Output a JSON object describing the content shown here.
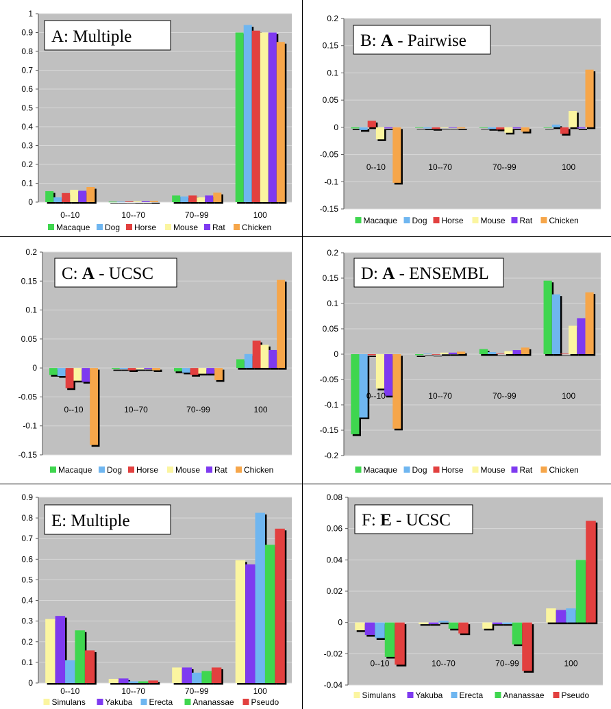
{
  "figure": {
    "category_labels": [
      "0--10",
      "10--70",
      "70--99",
      "100"
    ]
  },
  "colors": {
    "plot_bg": "#c0c0c0",
    "gridline": "#d8d8d8",
    "Macaque": "#3fd64f",
    "Dog": "#6fb6f0",
    "Horse": "#e2403f",
    "Mouse": "#fbf5a0",
    "Rat": "#7e3af0",
    "Chicken": "#f6a64a",
    "Simulans": "#fbf5a0",
    "Yakuba": "#7e3af0",
    "Erecta": "#6fb6f0",
    "Ananassae": "#3fd64f",
    "Pseudo": "#e2403f"
  },
  "chart_data": [
    {
      "id": "A",
      "type": "bar",
      "title": "A: Multiple",
      "title_bold": "",
      "title_rest": "",
      "categories": [
        "0--10",
        "10--70",
        "70--99",
        "100"
      ],
      "ylim": [
        0,
        1
      ],
      "yticks": [
        "0",
        "0.1",
        "0.2",
        "0.3",
        "0.4",
        "0.5",
        "0.6",
        "0.7",
        "0.8",
        "0.9",
        "1"
      ],
      "legend_position": "bottom",
      "series": [
        {
          "name": "Macaque",
          "values": [
            0.058,
            0.002,
            0.035,
            0.9
          ]
        },
        {
          "name": "Dog",
          "values": [
            0.025,
            0.002,
            0.03,
            0.94
          ]
        },
        {
          "name": "Horse",
          "values": [
            0.048,
            0.003,
            0.035,
            0.91
          ]
        },
        {
          "name": "Mouse",
          "values": [
            0.065,
            0.004,
            0.025,
            0.9
          ]
        },
        {
          "name": "Rat",
          "values": [
            0.06,
            0.004,
            0.035,
            0.9
          ]
        },
        {
          "name": "Chicken",
          "values": [
            0.08,
            0.006,
            0.05,
            0.85
          ]
        }
      ]
    },
    {
      "id": "B",
      "type": "bar",
      "title": "",
      "title_prefix": "B: ",
      "title_bold": "A",
      "title_rest": " - Pairwise",
      "categories": [
        "0--10",
        "10--70",
        "70--99",
        "100"
      ],
      "ylim": [
        -0.15,
        0.2
      ],
      "yticks": [
        "-0.15",
        "-0.1",
        "-0.05",
        "0",
        "0.05",
        "0.1",
        "0.15",
        "0.2"
      ],
      "legend_position": "bottom",
      "series": [
        {
          "name": "Macaque",
          "values": [
            -0.002,
            -0.001,
            -0.001,
            -0.001
          ]
        },
        {
          "name": "Dog",
          "values": [
            -0.005,
            -0.002,
            -0.003,
            0.005
          ]
        },
        {
          "name": "Horse",
          "values": [
            0.012,
            -0.003,
            -0.004,
            -0.012
          ]
        },
        {
          "name": "Mouse",
          "values": [
            -0.022,
            -0.001,
            -0.01,
            0.03
          ]
        },
        {
          "name": "Rat",
          "values": [
            -0.002,
            -0.001,
            -0.002,
            -0.002
          ]
        },
        {
          "name": "Chicken",
          "values": [
            -0.102,
            -0.002,
            -0.008,
            0.106
          ]
        }
      ]
    },
    {
      "id": "C",
      "type": "bar",
      "title": "",
      "title_prefix": "C: ",
      "title_bold": "A",
      "title_rest": " - UCSC",
      "categories": [
        "0--10",
        "10--70",
        "70--99",
        "100"
      ],
      "ylim": [
        -0.15,
        0.2
      ],
      "yticks": [
        "-0.15",
        "-0.1",
        "-0.05",
        "0",
        "0.05",
        "0.1",
        "0.15",
        "0.2"
      ],
      "legend_position": "bottom",
      "series": [
        {
          "name": "Macaque",
          "values": [
            -0.012,
            -0.002,
            -0.006,
            0.015
          ]
        },
        {
          "name": "Dog",
          "values": [
            -0.014,
            -0.002,
            -0.008,
            0.024
          ]
        },
        {
          "name": "Horse",
          "values": [
            -0.035,
            -0.004,
            -0.012,
            0.047
          ]
        },
        {
          "name": "Mouse",
          "values": [
            -0.022,
            -0.002,
            -0.01,
            0.04
          ]
        },
        {
          "name": "Rat",
          "values": [
            -0.024,
            -0.002,
            -0.01,
            0.031
          ]
        },
        {
          "name": "Chicken",
          "values": [
            -0.133,
            -0.004,
            -0.021,
            0.152
          ]
        }
      ]
    },
    {
      "id": "D",
      "type": "bar",
      "title": "",
      "title_prefix": "D: ",
      "title_bold": "A",
      "title_rest": " - ENSEMBL",
      "categories": [
        "0--10",
        "10--70",
        "70--99",
        "100"
      ],
      "ylim": [
        -0.2,
        0.2
      ],
      "yticks": [
        "-0.2",
        "-0.15",
        "-0.1",
        "-0.05",
        "0",
        "0.05",
        "0.1",
        "0.15",
        "0.2"
      ],
      "legend_position": "bottom",
      "series": [
        {
          "name": "Macaque",
          "values": [
            -0.158,
            -0.002,
            0.01,
            0.145
          ]
        },
        {
          "name": "Dog",
          "values": [
            -0.125,
            0.001,
            0.004,
            0.118
          ]
        },
        {
          "name": "Horse",
          "values": [
            -0.002,
            -0.001,
            0.001,
            0.001
          ]
        },
        {
          "name": "Mouse",
          "values": [
            -0.068,
            0.003,
            0.006,
            0.056
          ]
        },
        {
          "name": "Rat",
          "values": [
            -0.082,
            0.003,
            0.008,
            0.071
          ]
        },
        {
          "name": "Chicken",
          "values": [
            -0.147,
            0.005,
            0.013,
            0.122
          ]
        }
      ]
    },
    {
      "id": "E",
      "type": "bar",
      "title": "E: Multiple",
      "title_bold": "",
      "title_rest": "",
      "categories": [
        "0--10",
        "10--70",
        "70--99",
        "100"
      ],
      "ylim": [
        0,
        0.9
      ],
      "yticks": [
        "0",
        "0.1",
        "0.2",
        "0.3",
        "0.4",
        "0.5",
        "0.6",
        "0.7",
        "0.8",
        "0.9"
      ],
      "legend_position": "bottom",
      "series": [
        {
          "name": "Simulans",
          "values": [
            0.31,
            0.02,
            0.075,
            0.595
          ]
        },
        {
          "name": "Yakuba",
          "values": [
            0.325,
            0.022,
            0.075,
            0.575
          ]
        },
        {
          "name": "Erecta",
          "values": [
            0.11,
            0.008,
            0.05,
            0.825
          ]
        },
        {
          "name": "Ananassae",
          "values": [
            0.255,
            0.008,
            0.058,
            0.67
          ]
        },
        {
          "name": "Pseudo",
          "values": [
            0.158,
            0.012,
            0.075,
            0.748
          ]
        }
      ]
    },
    {
      "id": "F",
      "type": "bar",
      "title": "",
      "title_prefix": "F: ",
      "title_bold": "E",
      "title_rest": " - UCSC",
      "categories": [
        "0--10",
        "10--70",
        "70--99",
        "100"
      ],
      "ylim": [
        -0.04,
        0.08
      ],
      "yticks": [
        "-0.04",
        "-0.02",
        "0",
        "0.02",
        "0.04",
        "0.06",
        "0.08"
      ],
      "legend_position": "bottom",
      "series": [
        {
          "name": "Simulans",
          "values": [
            -0.005,
            -0.001,
            -0.004,
            0.009
          ]
        },
        {
          "name": "Yakuba",
          "values": [
            -0.008,
            -0.001,
            -0.001,
            0.008
          ]
        },
        {
          "name": "Erecta",
          "values": [
            -0.01,
            0.001,
            -0.001,
            0.009
          ]
        },
        {
          "name": "Ananassae",
          "values": [
            -0.022,
            -0.004,
            -0.014,
            0.04
          ]
        },
        {
          "name": "Pseudo",
          "values": [
            -0.027,
            -0.007,
            -0.031,
            0.065
          ]
        }
      ]
    }
  ]
}
